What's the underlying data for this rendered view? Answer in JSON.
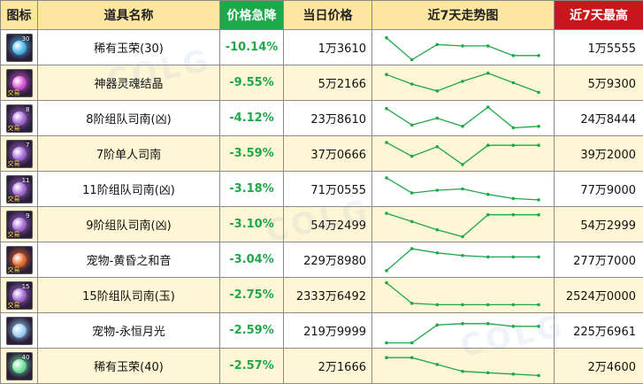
{
  "headers": {
    "icon": "图标",
    "name": "道具名称",
    "drop": "价格急降",
    "price": "当日价格",
    "trend": "近7天走势图",
    "high": "近7天最高"
  },
  "colors": {
    "header_bg": "#fde7a0",
    "drop_header_bg": "#1ea84a",
    "high_header_bg": "#c8161d",
    "drop_text": "#1ea84a",
    "trend_line": "#1ea84a",
    "row_alt_bg": "#fff6d5"
  },
  "rows": [
    {
      "name": "稀有玉荣(30)",
      "drop": "-10.14%",
      "price": "1万3610",
      "high": "1万5555",
      "icon": "jade-orb-icon",
      "icon_badge": "",
      "icon_level": "30",
      "icon_color": "#49b9e8",
      "trend": [
        0.85,
        0.05,
        0.6,
        0.55,
        0.55,
        0.2,
        0.2
      ]
    },
    {
      "name": "神器灵魂结晶",
      "drop": "-9.55%",
      "price": "5万2166",
      "high": "5万9300",
      "icon": "soul-crystal-icon",
      "icon_badge": "交易",
      "icon_level": "",
      "icon_color": "#d84fd8",
      "trend": [
        0.8,
        0.45,
        0.2,
        0.55,
        0.85,
        0.5,
        0.15
      ]
    },
    {
      "name": "8阶组队司南(凶)",
      "drop": "-4.12%",
      "price": "23万8610",
      "high": "24万8444",
      "icon": "compass-icon",
      "icon_badge": "交易",
      "icon_level": "8",
      "icon_color": "#a66ad6",
      "trend": [
        0.85,
        0.25,
        0.5,
        0.2,
        0.9,
        0.15,
        0.2
      ]
    },
    {
      "name": "7阶单人司南",
      "drop": "-3.59%",
      "price": "37万0666",
      "high": "39万2000",
      "icon": "compass-icon",
      "icon_badge": "交易",
      "icon_level": "7",
      "icon_color": "#a66ad6",
      "trend": [
        0.9,
        0.4,
        0.75,
        0.1,
        0.8,
        0.8,
        0.8
      ]
    },
    {
      "name": "11阶组队司南(凶)",
      "drop": "-3.18%",
      "price": "71万0555",
      "high": "77万9000",
      "icon": "compass-icon",
      "icon_badge": "交易",
      "icon_level": "11",
      "icon_color": "#a66ad6",
      "trend": [
        0.9,
        0.35,
        0.45,
        0.5,
        0.3,
        0.15,
        0.1
      ]
    },
    {
      "name": "9阶组队司南(凶)",
      "drop": "-3.10%",
      "price": "54万2499",
      "high": "54万2999",
      "icon": "compass-icon",
      "icon_badge": "交易",
      "icon_level": "9",
      "icon_color": "#a66ad6",
      "trend": [
        0.9,
        0.6,
        0.3,
        0.05,
        0.85,
        0.85,
        0.85
      ]
    },
    {
      "name": "宠物-黄昏之和音",
      "drop": "-3.04%",
      "price": "229万8980",
      "high": "277万7000",
      "icon": "pet-sunset-icon",
      "icon_badge": "交易",
      "icon_level": "",
      "icon_color": "#e86a2a",
      "trend": [
        0.1,
        0.9,
        0.75,
        0.65,
        0.6,
        0.6,
        0.6
      ]
    },
    {
      "name": "15阶组队司南(玉)",
      "drop": "-2.75%",
      "price": "2333万6492",
      "high": "2524万0000",
      "icon": "compass-icon",
      "icon_badge": "交易",
      "icon_level": "15",
      "icon_color": "#a66ad6",
      "trend": [
        0.95,
        0.2,
        0.15,
        0.15,
        0.15,
        0.15,
        0.15
      ]
    },
    {
      "name": "宠物-永恒月光",
      "drop": "-2.59%",
      "price": "219万9999",
      "high": "225万6961",
      "icon": "pet-moonlight-icon",
      "icon_badge": "",
      "icon_level": "",
      "icon_color": "#9ad0f5",
      "trend": [
        0.05,
        0.05,
        0.7,
        0.75,
        0.75,
        0.65,
        0.65
      ]
    },
    {
      "name": "稀有玉荣(40)",
      "drop": "-2.57%",
      "price": "2万1666",
      "high": "2万4600",
      "icon": "jade-orb-icon",
      "icon_badge": "",
      "icon_level": "40",
      "icon_color": "#6fe29a",
      "trend": [
        0.8,
        0.8,
        0.55,
        0.3,
        0.25,
        0.2,
        0.15
      ]
    }
  ]
}
